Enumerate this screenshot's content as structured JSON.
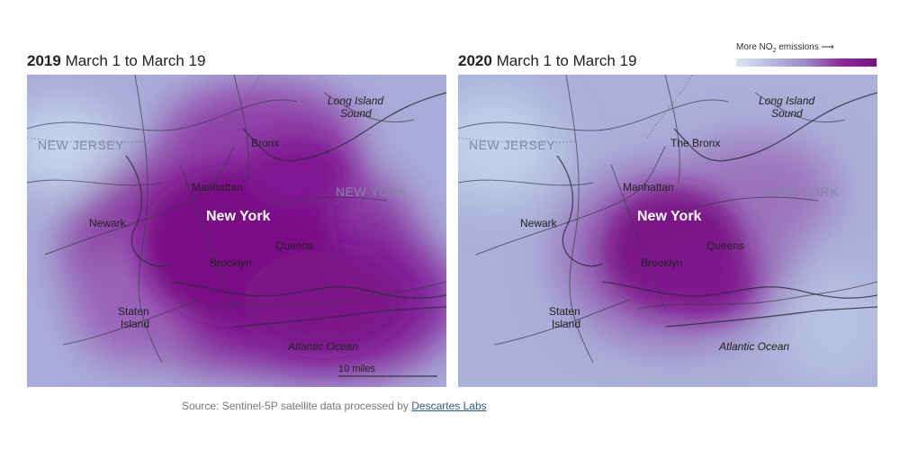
{
  "panels": [
    {
      "year": "2019",
      "dates": "March 1 to March 19"
    },
    {
      "year": "2020",
      "dates": "March 1 to March 19"
    }
  ],
  "legend": {
    "label": "More NO",
    "sub": "2",
    "suffix": " emissions",
    "arrow": "⟶"
  },
  "labels": {
    "new_jersey": "NEW JERSEY",
    "new_york_state": "NEW YORK",
    "new_york_city": "New York",
    "newark": "Newark",
    "manhattan": "Manhattan",
    "bronx_2019": "Bronx",
    "bronx_2020": "The Bronx",
    "queens": "Queens",
    "brooklyn": "Brooklyn",
    "staten_1": "Staten",
    "staten_2": "Island",
    "li_sound_1": "Long Island",
    "li_sound_2": "Sound",
    "atlantic": "Atlantic Ocean"
  },
  "scale": {
    "label": "10 miles"
  },
  "source": {
    "text": "Source: Sentinel-5P satellite data processed by ",
    "link": "Descartes Labs"
  },
  "colors": {
    "low": "#d8e7f3",
    "mid": "#a6a9d6",
    "high": "#7a1086"
  }
}
